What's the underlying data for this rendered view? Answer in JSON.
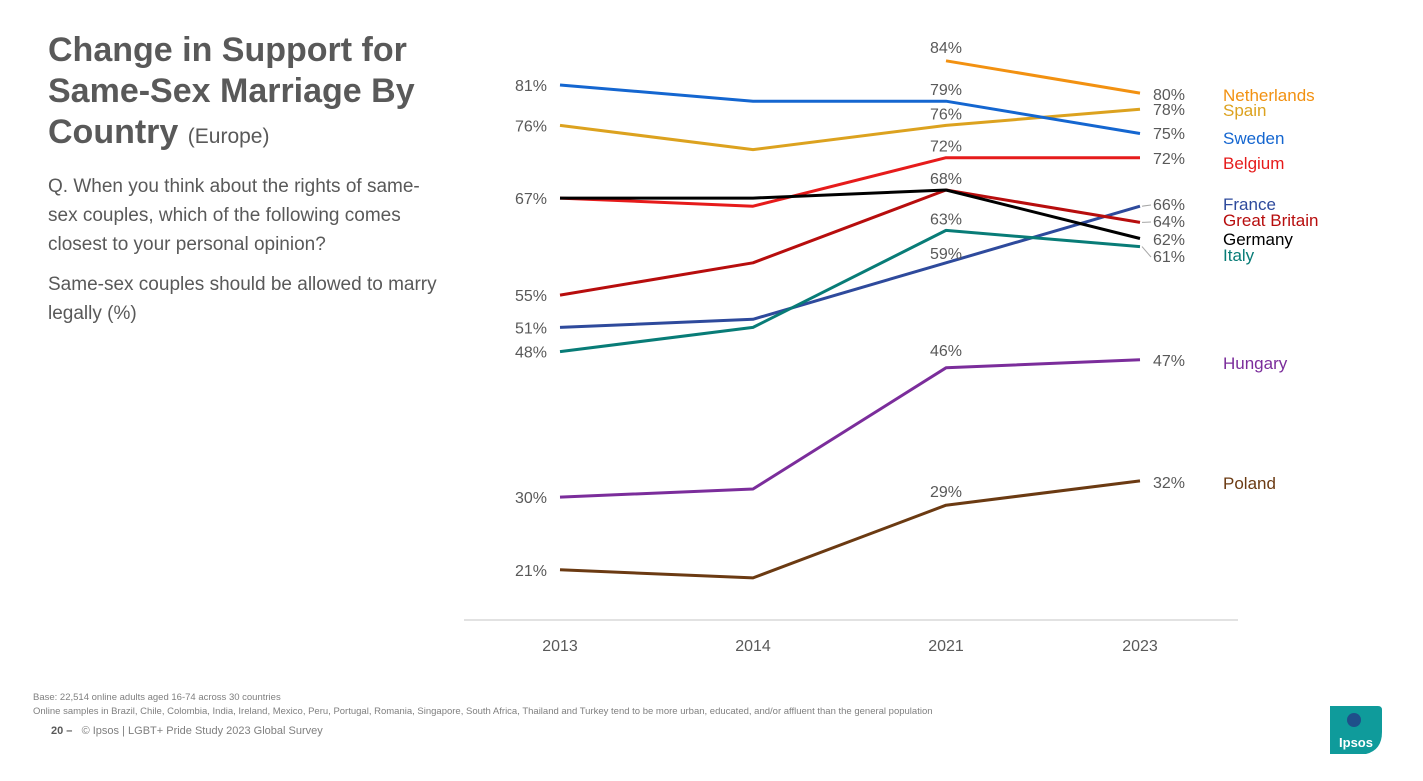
{
  "title": {
    "main": "Change in Support for Same-Sex Marriage By Country",
    "sub": "(Europe)"
  },
  "question": "Q. When you think about the rights of same-sex couples, which of the following comes closest to your personal opinion?",
  "subquestion": "Same-sex couples should be allowed to marry legally (%)",
  "footer": {
    "base": "Base: 22,514 online adults aged 16-74 across 30 countries",
    "note": "Online samples in Brazil, Chile, Colombia, India, Ireland, Mexico, Peru, Portugal, Romania, Singapore, South Africa, Thailand and Turkey tend to be more urban, educated, and/or affluent than the general population",
    "page_number": "20 –",
    "source": "© Ipsos | LGBT+ Pride Study 2023 Global Survey"
  },
  "logo": {
    "text": "Ipsos",
    "color": "#0f9b9b"
  },
  "chart_data": {
    "type": "line",
    "title": "",
    "xlabel": "",
    "ylabel": "",
    "ylim": [
      16,
      90
    ],
    "grid": false,
    "categories": [
      "2013",
      "2014",
      "2021",
      "2023"
    ],
    "series": [
      {
        "name": "Netherlands",
        "color": "#f29111",
        "values": [
          null,
          null,
          84,
          80
        ],
        "labels": [
          null,
          null,
          "84%",
          "80%"
        ]
      },
      {
        "name": "Spain",
        "color": "#dca21f",
        "values": [
          76,
          73,
          76,
          78
        ],
        "labels": [
          "76%",
          null,
          "76%",
          "78%"
        ]
      },
      {
        "name": "Sweden",
        "color": "#1466d0",
        "values": [
          81,
          79,
          79,
          75
        ],
        "labels": [
          "81%",
          null,
          "79%",
          "75%"
        ]
      },
      {
        "name": "Belgium",
        "color": "#e61b1b",
        "values": [
          67,
          66,
          72,
          72
        ],
        "labels": [
          null,
          null,
          "72%",
          "72%"
        ]
      },
      {
        "name": "France",
        "color": "#2e4a9c",
        "values": [
          51,
          52,
          59,
          66
        ],
        "labels": [
          "51%",
          null,
          "59%",
          "66%"
        ]
      },
      {
        "name": "Great Britain",
        "color": "#b70d0d",
        "values": [
          55,
          59,
          68,
          64
        ],
        "labels": [
          "55%",
          null,
          "68%",
          "64%"
        ]
      },
      {
        "name": "Germany",
        "color": "#000000",
        "values": [
          67,
          67,
          68,
          62
        ],
        "labels": [
          "67%",
          null,
          null,
          "62%"
        ]
      },
      {
        "name": "Italy",
        "color": "#087c77",
        "values": [
          48,
          51,
          63,
          61
        ],
        "labels": [
          "48%",
          null,
          "63%",
          "61%"
        ]
      },
      {
        "name": "Hungary",
        "color": "#7b2d9b",
        "values": [
          30,
          31,
          46,
          47
        ],
        "labels": [
          "30%",
          null,
          "46%",
          "47%"
        ]
      },
      {
        "name": "Poland",
        "color": "#6b3a12",
        "values": [
          21,
          20,
          29,
          32
        ],
        "labels": [
          "21%",
          null,
          "29%",
          "32%"
        ]
      }
    ]
  }
}
